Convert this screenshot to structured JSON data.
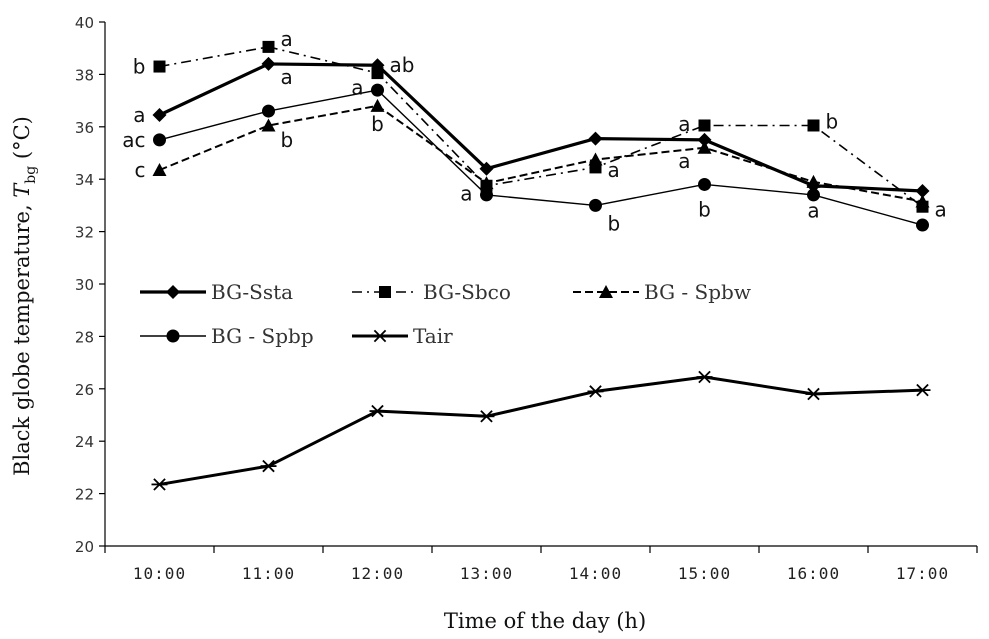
{
  "chart_data": {
    "type": "line",
    "categories": [
      "10:00",
      "11:00",
      "12:00",
      "13:00",
      "14:00",
      "15:00",
      "16:00",
      "17:00"
    ],
    "xlabel": "Time of the day (h)",
    "ylabel": {
      "prefix": "Black globe temperature, ",
      "symbol": "T",
      "subscript": "bg",
      "suffix": " (°C)"
    },
    "ylim": [
      20,
      40
    ],
    "yticks": [
      20,
      22,
      24,
      26,
      28,
      30,
      32,
      34,
      36,
      38,
      40
    ],
    "grid": false,
    "legend_position": "center-left",
    "series": [
      {
        "name": "BG-Ssta",
        "values": [
          36.45,
          38.4,
          38.35,
          34.4,
          35.55,
          35.5,
          33.75,
          33.55
        ],
        "marker": "diamond",
        "dash": "solid",
        "width": 3.2
      },
      {
        "name": "BG-Sbco",
        "values": [
          38.3,
          39.05,
          38.05,
          33.75,
          34.45,
          36.05,
          36.05,
          32.95
        ],
        "marker": "square",
        "dash": "dashdot",
        "width": 1.6
      },
      {
        "name": "BG - Spbw",
        "values": [
          34.35,
          36.05,
          36.8,
          33.85,
          34.75,
          35.2,
          33.9,
          33.15
        ],
        "marker": "triangle",
        "dash": "dash",
        "width": 2.0
      },
      {
        "name": "BG - Spbp",
        "values": [
          35.5,
          36.6,
          37.4,
          33.4,
          33.0,
          33.8,
          33.4,
          32.25
        ],
        "marker": "circle",
        "dash": "solid",
        "width": 1.4
      },
      {
        "name": "Tair",
        "values": [
          22.35,
          23.05,
          25.15,
          24.95,
          25.9,
          26.45,
          25.8,
          25.95
        ],
        "marker": "asterisk",
        "dash": "solid",
        "width": 3.0
      }
    ],
    "annotations": [
      {
        "text": "b",
        "category": "10:00",
        "y": 38.3,
        "side": "left"
      },
      {
        "text": "a",
        "category": "10:00",
        "y": 36.45,
        "side": "left"
      },
      {
        "text": "ac",
        "category": "10:00",
        "y": 35.5,
        "side": "left"
      },
      {
        "text": "c",
        "category": "10:00",
        "y": 34.35,
        "side": "left"
      },
      {
        "text": "a",
        "category": "11:00",
        "y": 39.35,
        "side": "right"
      },
      {
        "text": "a",
        "category": "11:00",
        "y": 37.9,
        "side": "right"
      },
      {
        "text": "b",
        "category": "11:00",
        "y": 35.5,
        "side": "right"
      },
      {
        "text": "a",
        "category": "12:00",
        "y": 37.5,
        "side": "left"
      },
      {
        "text": "ab",
        "category": "12:00",
        "y": 38.35,
        "side": "right"
      },
      {
        "text": "b",
        "category": "12:00",
        "y": 36.1,
        "side": "center"
      },
      {
        "text": "a",
        "category": "13:00",
        "y": 33.45,
        "side": "left"
      },
      {
        "text": "a",
        "category": "14:00",
        "y": 34.35,
        "side": "right"
      },
      {
        "text": "b",
        "category": "14:00",
        "y": 32.3,
        "side": "right"
      },
      {
        "text": "a",
        "category": "15:00",
        "y": 36.1,
        "side": "left"
      },
      {
        "text": "a",
        "category": "15:00",
        "y": 34.7,
        "side": "left"
      },
      {
        "text": "b",
        "category": "15:00",
        "y": 32.85,
        "side": "center"
      },
      {
        "text": "b",
        "category": "16:00",
        "y": 36.2,
        "side": "right"
      },
      {
        "text": "a",
        "category": "16:00",
        "y": 32.8,
        "side": "center"
      },
      {
        "text": "a",
        "category": "17:00",
        "y": 32.85,
        "side": "right"
      }
    ]
  },
  "colors": {
    "line": "#000000",
    "axis": "#000000",
    "text": "#333333"
  }
}
